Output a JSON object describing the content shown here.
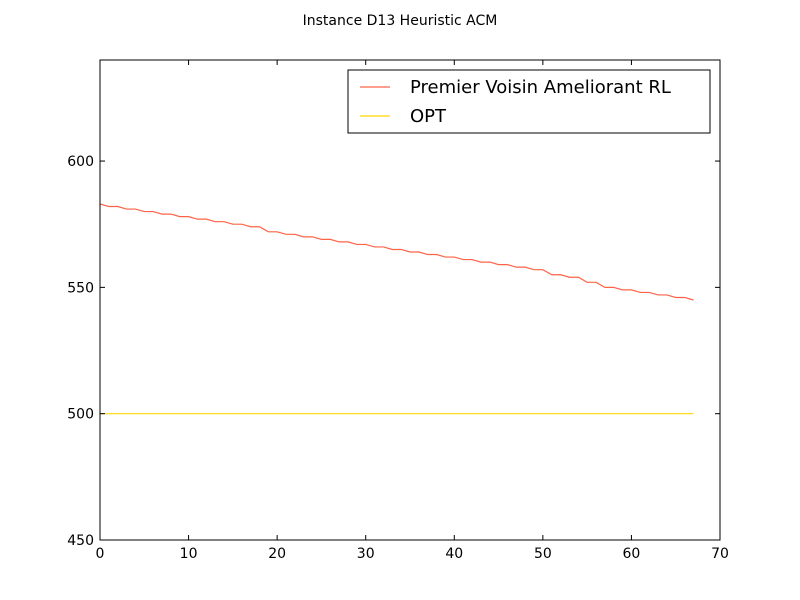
{
  "chart_data": {
    "type": "line",
    "title": "Instance D13 Heuristic ACM",
    "xlabel": "",
    "ylabel": "",
    "xlim": [
      0,
      70
    ],
    "ylim": [
      450,
      640
    ],
    "x_ticks": [
      0,
      10,
      20,
      30,
      40,
      50,
      60,
      70
    ],
    "y_ticks": [
      450,
      500,
      550,
      600
    ],
    "grid": false,
    "legend_position": "top-right",
    "series": [
      {
        "name": "Premier Voisin Ameliorant RL",
        "color": "#ff6347",
        "x": [
          0,
          1,
          2,
          3,
          4,
          5,
          6,
          7,
          8,
          9,
          10,
          11,
          12,
          13,
          14,
          15,
          16,
          17,
          18,
          19,
          20,
          21,
          22,
          23,
          24,
          25,
          26,
          27,
          28,
          29,
          30,
          31,
          32,
          33,
          34,
          35,
          36,
          37,
          38,
          39,
          40,
          41,
          42,
          43,
          44,
          45,
          46,
          47,
          48,
          49,
          50,
          51,
          52,
          53,
          54,
          55,
          56,
          57,
          58,
          59,
          60,
          61,
          62,
          63,
          64,
          65,
          66,
          67
        ],
        "values": [
          583,
          582,
          582,
          581,
          581,
          580,
          580,
          579,
          579,
          578,
          578,
          577,
          577,
          576,
          576,
          575,
          575,
          574,
          574,
          572,
          572,
          571,
          571,
          570,
          570,
          569,
          569,
          568,
          568,
          567,
          567,
          566,
          566,
          565,
          565,
          564,
          564,
          563,
          563,
          562,
          562,
          561,
          561,
          560,
          560,
          559,
          559,
          558,
          558,
          557,
          557,
          555,
          555,
          554,
          554,
          552,
          552,
          550,
          550,
          549,
          549,
          548,
          548,
          547,
          547,
          546,
          546,
          545
        ]
      },
      {
        "name": "OPT",
        "color": "#ffd700",
        "x": [
          0,
          67
        ],
        "values": [
          500,
          500
        ]
      }
    ]
  }
}
